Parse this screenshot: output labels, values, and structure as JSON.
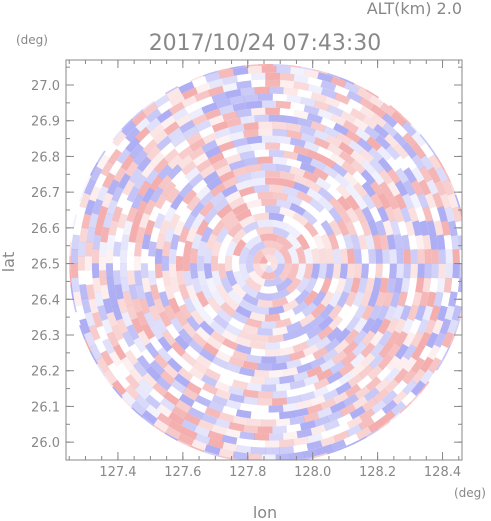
{
  "chart_data": {
    "type": "heatmap",
    "title": "2017/10/24 07:43:30",
    "altitude_label": "ALT(km)  2.0",
    "xlabel": "lon",
    "ylabel": "lat",
    "x_unit": "(deg)",
    "y_unit": "(deg)",
    "xlim": [
      127.24,
      128.46
    ],
    "ylim": [
      25.95,
      27.07
    ],
    "x_ticks": [
      "127.4",
      "127.6",
      "127.8",
      "128.0",
      "128.2",
      "128.4"
    ],
    "x_tick_values": [
      127.4,
      127.6,
      127.8,
      128.0,
      128.2,
      128.4
    ],
    "y_ticks": [
      "27.0",
      "26.9",
      "26.8",
      "26.7",
      "26.6",
      "26.5",
      "26.4",
      "26.3",
      "26.2",
      "26.1",
      "26.0"
    ],
    "y_tick_values": [
      27.0,
      26.9,
      26.8,
      26.7,
      26.6,
      26.5,
      26.4,
      26.3,
      26.2,
      26.1,
      26.0
    ],
    "field_center": {
      "lon": 127.865,
      "lat": 26.5
    },
    "field_radius_deg": {
      "lon": 0.615,
      "lat": 0.55
    },
    "colors": {
      "positive": "#f2a0a0",
      "negative": "#a0a0f2",
      "neutral": "#ffffff",
      "axis": "#888888"
    }
  }
}
